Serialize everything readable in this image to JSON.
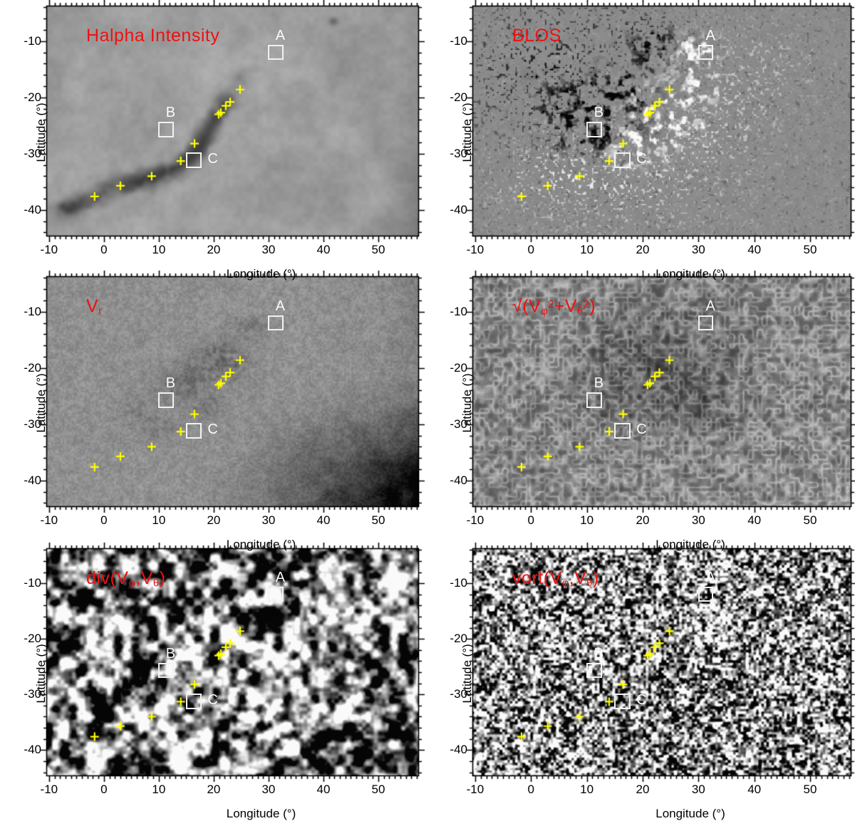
{
  "chart_data": {
    "type": "heatmap",
    "grid": "2 columns x 3 rows of co-aligned solar maps",
    "xlabel": "Longitude (°)",
    "ylabel": "Latitude (°)",
    "xlim": [
      -10.5,
      57.4
    ],
    "ylim": [
      -44.7,
      -3.7
    ],
    "xticks": [
      -10,
      0,
      10,
      20,
      30,
      40,
      50
    ],
    "yticks": [
      -10,
      -20,
      -30,
      -40
    ],
    "x_minor_step": 1,
    "y_minor_step": 2,
    "panels": [
      {
        "id": "halpha",
        "title": "Halpha Intensity",
        "texture": "halpha",
        "appearance": "smooth light-gray chromosphere with dark curved filament along the magnetic inversion line"
      },
      {
        "id": "blos",
        "title": "BLOS",
        "texture": "magnetogram",
        "appearance": "gray background with black negative-polarity patches upper-left and white positive-polarity patches to the lower-right"
      },
      {
        "id": "vr",
        "title": "V_r",
        "texture": "vr",
        "appearance": "fine-grain gray with diffuse dark patches along the filament channel and dark vignette in lower-right corner"
      },
      {
        "id": "vh",
        "title": "√(V_φ^2+V_θ^2)",
        "texture": "ridged",
        "appearance": "dark mottled field with bright cell-rim squiggles; suppressed (darker) in the active region"
      },
      {
        "id": "div",
        "title": "div(V_φ,V_θ)",
        "texture": "granules",
        "appearance": "high-contrast blobby black/white divergence map"
      },
      {
        "id": "vort",
        "title": "vort(V_φ,V_θ)",
        "texture": "finegrain",
        "appearance": "fine salt-and-pepper vorticity map"
      }
    ],
    "roi_boxes": [
      {
        "label": "A",
        "lon": 31.3,
        "lat": -12.0,
        "width_deg": 2.8,
        "height_deg": 2.7,
        "label_side": "top"
      },
      {
        "label": "B",
        "lon": 11.3,
        "lat": -25.7,
        "width_deg": 2.8,
        "height_deg": 2.7,
        "label_side": "top"
      },
      {
        "label": "C",
        "lon": 16.4,
        "lat": -31.2,
        "width_deg": 2.9,
        "height_deg": 2.8,
        "label_side": "right"
      }
    ],
    "markers": {
      "symbol": "+",
      "points": [
        [
          -1.7,
          -37.6
        ],
        [
          3.0,
          -35.7
        ],
        [
          8.7,
          -34.0
        ],
        [
          14.0,
          -31.3
        ],
        [
          16.5,
          -28.2
        ],
        [
          20.9,
          -23.0
        ],
        [
          21.3,
          -22.7
        ],
        [
          22.2,
          -21.5
        ],
        [
          23.0,
          -20.8
        ],
        [
          24.8,
          -18.6
        ]
      ]
    },
    "colors": {
      "annotation": "#f01010",
      "marker": "#ffff00",
      "roi_box": "#f2f2f2",
      "axis": "#000000",
      "background": "#ffffff"
    }
  }
}
